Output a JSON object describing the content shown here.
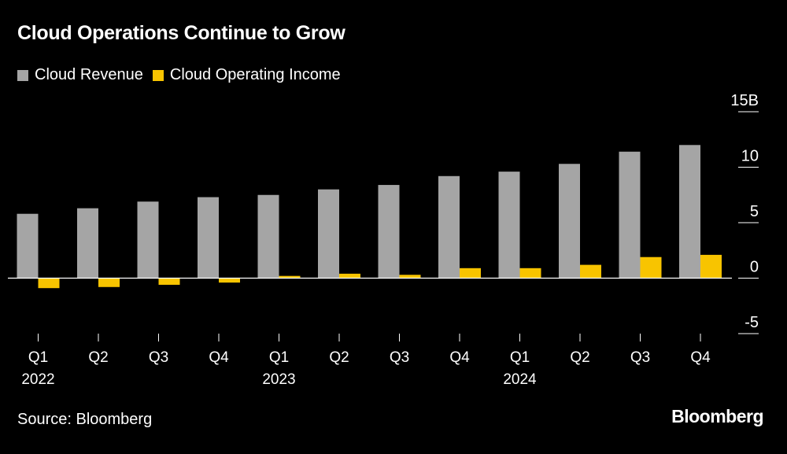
{
  "title": "Cloud Operations Continue to Grow",
  "source": "Source: Bloomberg",
  "brand": "Bloomberg",
  "colors": {
    "background": "#000000",
    "revenue": "#a5a5a5",
    "income": "#f8c400",
    "axis": "#ffffff"
  },
  "legend": [
    {
      "label": "Cloud Revenue",
      "color": "#a5a5a5"
    },
    {
      "label": "Cloud Operating Income",
      "color": "#f8c400"
    }
  ],
  "chart_data": {
    "type": "bar",
    "title": "Cloud Operations Continue to Grow",
    "xlabel": "",
    "ylabel": "",
    "ylim": [
      -5,
      15
    ],
    "yticks": [
      {
        "value": 15,
        "label": "15B"
      },
      {
        "value": 10,
        "label": "10"
      },
      {
        "value": 5,
        "label": "5"
      },
      {
        "value": 0,
        "label": "0"
      },
      {
        "value": -5,
        "label": "-5"
      }
    ],
    "categories": [
      "Q1",
      "Q2",
      "Q3",
      "Q4",
      "Q1",
      "Q2",
      "Q3",
      "Q4",
      "Q1",
      "Q2",
      "Q3",
      "Q4"
    ],
    "year_labels": [
      {
        "index": 0,
        "label": "2022"
      },
      {
        "index": 4,
        "label": "2023"
      },
      {
        "index": 8,
        "label": "2024"
      }
    ],
    "series": [
      {
        "name": "Cloud Revenue",
        "values": [
          5.8,
          6.3,
          6.9,
          7.3,
          7.5,
          8.0,
          8.4,
          9.2,
          9.6,
          10.3,
          11.4,
          12.0
        ]
      },
      {
        "name": "Cloud Operating Income",
        "values": [
          -0.9,
          -0.8,
          -0.6,
          -0.4,
          0.2,
          0.4,
          0.3,
          0.9,
          0.9,
          1.2,
          1.9,
          2.1
        ]
      }
    ]
  }
}
